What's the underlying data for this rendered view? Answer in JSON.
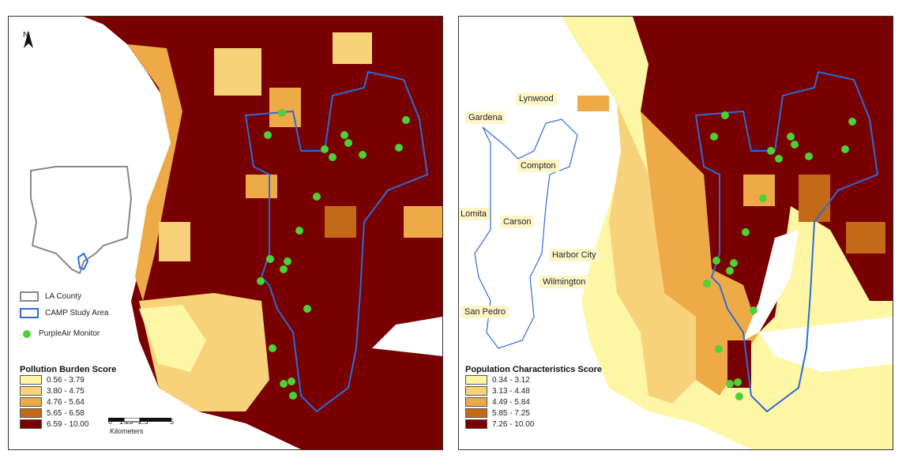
{
  "colors": {
    "water": "#ffffff",
    "class1": "#fdf6a4",
    "class2": "#f8d27b",
    "class3": "#eeaa46",
    "class4": "#c26a17",
    "class5": "#780000",
    "study_area_outline": "#2f6bd6",
    "county_outline": "#888888",
    "monitor": "#4cd136",
    "label_bg": "#fff6c8"
  },
  "left_map": {
    "north_label": "N",
    "layers": [
      {
        "label": "LA County",
        "icon": "county-outline-swatch"
      },
      {
        "label": "CAMP Study Area",
        "icon": "study-area-outline-swatch"
      }
    ],
    "monitor_label": "PurpleAir Monitor",
    "legend_title": "Pollution Burden Score",
    "legend_classes": [
      "0.56 - 3.79",
      "3.80 - 4.75",
      "4.76 - 5.64",
      "5.65 - 6.58",
      "6.59 - 10.00"
    ],
    "scale_ticks": [
      "0",
      "1.25",
      "2.5",
      "5"
    ],
    "scale_unit": "Kilometers"
  },
  "right_map": {
    "legend_title": "Population Characteristics Score",
    "legend_classes": [
      "0.34 - 3.12",
      "3.13 - 4.48",
      "4.49 - 5.84",
      "5.85 - 7.25",
      "7.26 - 10.00"
    ],
    "place_labels": [
      "Lynwood",
      "Gardena",
      "Compton",
      "Lomita",
      "Carson",
      "Harbor City",
      "Wilmington",
      "San Pedro"
    ]
  }
}
